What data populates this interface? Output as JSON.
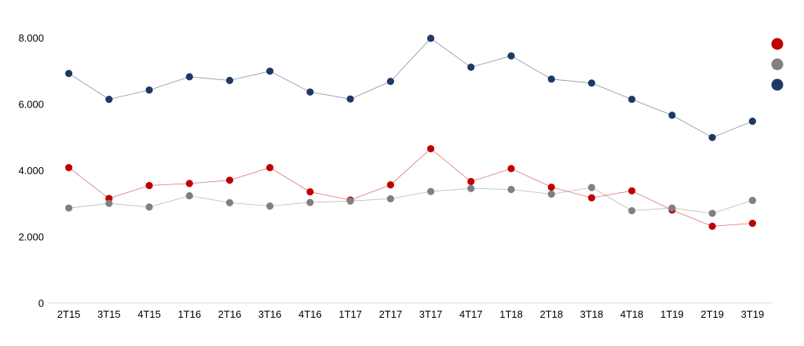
{
  "chart_data": {
    "type": "line",
    "title": "",
    "xlabel": "",
    "ylabel": "",
    "categories": [
      "2T15",
      "3T15",
      "4T15",
      "1T16",
      "2T16",
      "3T16",
      "4T16",
      "1T17",
      "2T17",
      "3T17",
      "4T17",
      "1T18",
      "2T18",
      "3T18",
      "4T18",
      "1T19",
      "2T19",
      "3T19"
    ],
    "ylim": [
      0,
      8000
    ],
    "yticks": [
      0,
      2000,
      4000,
      6000,
      8000
    ],
    "ytick_labels": [
      "0",
      "2.000",
      "4.000",
      "6.000",
      "8.000"
    ],
    "grid": false,
    "legend": {
      "position": "right",
      "show_text": false
    },
    "series": [
      {
        "color": "#c00000",
        "values": [
          4080,
          3150,
          3540,
          3600,
          3700,
          4080,
          3350,
          3100,
          3560,
          4650,
          3660,
          4050,
          3490,
          3170,
          3380,
          2800,
          2310,
          2400
        ]
      },
      {
        "color": "#808080",
        "values": [
          2860,
          3000,
          2890,
          3230,
          3020,
          2920,
          3030,
          3070,
          3140,
          3360,
          3450,
          3420,
          3280,
          3480,
          2780,
          2860,
          2700,
          3090
        ]
      },
      {
        "color": "#1f3864",
        "values": [
          6920,
          6140,
          6420,
          6820,
          6710,
          6990,
          6360,
          6150,
          6680,
          7980,
          7110,
          7450,
          6750,
          6630,
          6140,
          5660,
          4990,
          5480
        ]
      }
    ]
  }
}
